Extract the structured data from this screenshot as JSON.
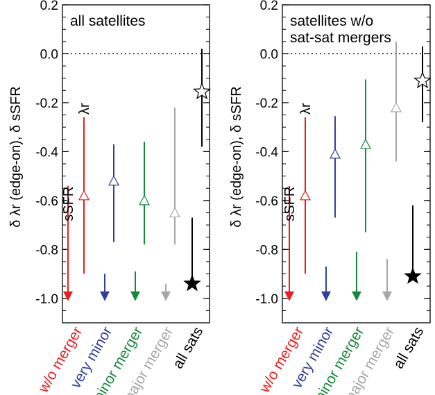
{
  "chart_data": [
    {
      "type": "errorbar",
      "title": "all satellites",
      "ylabel": "δ λr (edge-on), δ sSFR",
      "ylim": [
        -1.1,
        0.2
      ],
      "yticks": [
        0.2,
        0.0,
        -0.2,
        -0.4,
        -0.6,
        -0.8,
        -1.0
      ],
      "ytick_labels": [
        "0.2",
        "0.0",
        "-0.2",
        "-0.4",
        "-0.6",
        "-0.8",
        "-1.0"
      ],
      "reference_line": 0.0,
      "categories": [
        "w/o merger",
        "very minor",
        "minor merger",
        "major merger",
        "all sats"
      ],
      "colors": [
        "#ee1c1c",
        "#2e3f9e",
        "#138a3a",
        "#a6a6a6",
        "#000000"
      ],
      "lambda_r": {
        "label": "λr",
        "marker": "open",
        "values": [
          -0.58,
          -0.52,
          -0.6,
          -0.65,
          -0.155
        ],
        "lo": [
          -0.9,
          -0.77,
          -0.78,
          -0.78,
          -0.38
        ],
        "hi": [
          -0.26,
          -0.37,
          -0.36,
          -0.22,
          0.02
        ]
      },
      "ssfr": {
        "label": "sSFR",
        "marker": "filled",
        "upper_limit": true,
        "values": [
          -1.0,
          -1.0,
          -1.0,
          -1.0,
          -0.94
        ],
        "top": [
          -0.54,
          -0.9,
          -0.89,
          -0.94,
          -0.67
        ]
      }
    },
    {
      "type": "errorbar",
      "title": "satellites w/o sat-sat mergers",
      "title_lines": [
        "satellites w/o",
        "sat-sat mergers"
      ],
      "ylabel": "δ λr (edge-on), δ sSFR",
      "ylim": [
        -1.1,
        0.2
      ],
      "yticks": [
        0.2,
        0.0,
        -0.2,
        -0.4,
        -0.6,
        -0.8,
        -1.0
      ],
      "ytick_labels": [
        "0.2",
        "0.0",
        "-0.2",
        "-0.4",
        "-0.6",
        "-0.8",
        "-1.0"
      ],
      "reference_line": 0.0,
      "categories": [
        "w/o merger",
        "very minor",
        "minor merger",
        "major merger",
        "all sats"
      ],
      "colors": [
        "#ee1c1c",
        "#2e3f9e",
        "#138a3a",
        "#a6a6a6",
        "#000000"
      ],
      "lambda_r": {
        "label": "λr",
        "marker": "open",
        "values": [
          -0.58,
          -0.41,
          -0.37,
          -0.22,
          -0.11
        ],
        "lo": [
          -0.9,
          -0.67,
          -0.73,
          -0.44,
          -0.28
        ],
        "hi": [
          -0.26,
          -0.255,
          -0.105,
          0.05,
          0.03
        ]
      },
      "ssfr": {
        "label": "sSFR",
        "marker": "filled",
        "upper_limit": true,
        "values": [
          -1.0,
          -1.0,
          -1.0,
          -1.0,
          -0.91
        ],
        "top": [
          -0.54,
          -0.87,
          -0.81,
          -0.84,
          -0.62
        ]
      }
    }
  ]
}
